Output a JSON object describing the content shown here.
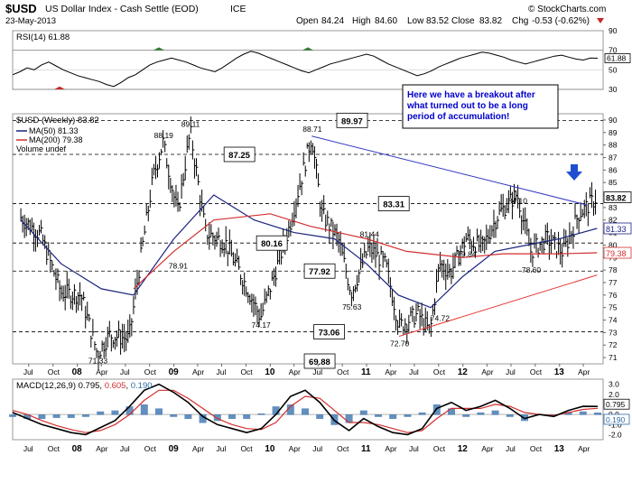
{
  "header": {
    "symbol": "$USD",
    "description": "US Dollar Index - Cash Settle (EOD)",
    "exchange": "ICE",
    "date": "23-May-2013",
    "open_label": "Open",
    "open": "84.24",
    "high_label": "High",
    "high": "84.60",
    "low_label": "Low",
    "low": "83.52",
    "close_label": "Close",
    "close": "83.82",
    "chg_label": "Chg",
    "chg": "-0.53 (-0.62%)",
    "watermark": "© StockCharts.com"
  },
  "colors": {
    "price": "#000000",
    "ma50": "#1a237e",
    "ma200": "#d32f2f",
    "trendline_blue": "#3636c8",
    "trendline_red": "#e53935",
    "histogram": "#2e6aa8",
    "arrow": "#1f4fd1",
    "callout_text": "#0000cc",
    "rsi_fill": "#c62828",
    "rsi_overbought_fill": "#2e7d32"
  },
  "chart_data": [
    {
      "type": "line",
      "panel": "RSI",
      "label": "RSI(14)",
      "value": "61.88",
      "ylim": [
        30,
        90
      ],
      "ticks": [
        "90",
        "70",
        "50",
        "30"
      ],
      "reference_lines": [
        70,
        30
      ],
      "series": [
        {
          "values": [
            45,
            48,
            52,
            50,
            55,
            58,
            54,
            50,
            47,
            44,
            42,
            40,
            38,
            35,
            33,
            37,
            42,
            45,
            50,
            55,
            58,
            60,
            62,
            60,
            58,
            55,
            52,
            50,
            48,
            52,
            57,
            62,
            66,
            69,
            67,
            64,
            61,
            58,
            55,
            52,
            49,
            47,
            50,
            53,
            56,
            58,
            60,
            62,
            64,
            66,
            64,
            60,
            56,
            53,
            50,
            47,
            44,
            46,
            49,
            53,
            56,
            59,
            62,
            64,
            66,
            68,
            67,
            65,
            63,
            60,
            58,
            56,
            58,
            60,
            62,
            64,
            65,
            63,
            61,
            60,
            62,
            61.88
          ]
        }
      ]
    },
    {
      "type": "ohlc",
      "panel": "Price",
      "label": "$USD (Weekly)",
      "value": "83.82",
      "ylim": [
        70.5,
        90.5
      ],
      "y_ticks": [
        71,
        72,
        73,
        74,
        75,
        76,
        77,
        78,
        79,
        80,
        81,
        82,
        83,
        84,
        85,
        86,
        87,
        88,
        89,
        90
      ],
      "x_ticks": [
        "Jul",
        "Oct",
        "08",
        "Apr",
        "Jul",
        "Oct",
        "09",
        "Apr",
        "Jul",
        "Oct",
        "10",
        "Apr",
        "Jul",
        "Oct",
        "11",
        "Apr",
        "Jul",
        "Oct",
        "12",
        "Apr",
        "Jul",
        "Oct",
        "13",
        "Apr"
      ],
      "x_range": [
        "2007-05-01",
        "2013-06-15"
      ],
      "series": [
        {
          "name": "$USD (Weekly) 83.82",
          "dates": [
            "2007-06-01",
            "2007-08-15",
            "2007-11-01",
            "2008-01-15",
            "2008-03-17",
            "2008-05-01",
            "2008-07-15",
            "2008-09-01",
            "2008-10-15",
            "2008-11-21",
            "2009-01-15",
            "2009-03-04",
            "2009-05-01",
            "2009-07-15",
            "2009-09-15",
            "2009-11-25",
            "2010-01-15",
            "2010-03-15",
            "2010-06-07",
            "2010-07-15",
            "2010-09-15",
            "2010-11-04",
            "2011-01-10",
            "2011-03-15",
            "2011-05-04",
            "2011-07-15",
            "2011-08-29",
            "2011-10-04",
            "2011-11-15",
            "2012-01-13",
            "2012-03-15",
            "2012-05-15",
            "2012-07-24",
            "2012-09-14",
            "2012-11-15",
            "2013-01-15",
            "2013-03-15",
            "2013-05-23"
          ],
          "close": [
            82.2,
            80.8,
            76.2,
            76.0,
            71.3,
            72.8,
            72.5,
            79.5,
            85.5,
            88.2,
            82.5,
            89.1,
            81.0,
            80.2,
            77.5,
            74.2,
            77.5,
            81.5,
            88.7,
            82.5,
            80.5,
            76.2,
            79.8,
            78.4,
            73.5,
            74.5,
            73.0,
            78.5,
            77.8,
            80.5,
            79.8,
            82.5,
            84.1,
            79.5,
            80.5,
            79.4,
            82.5,
            83.8
          ]
        },
        {
          "name": "MA(50) 81.33",
          "dates": [
            "2007-06-01",
            "2007-11-01",
            "2008-04-01",
            "2008-08-01",
            "2009-01-01",
            "2009-06-01",
            "2009-11-01",
            "2010-04-01",
            "2010-09-01",
            "2011-01-01",
            "2011-05-01",
            "2011-09-01",
            "2012-01-01",
            "2012-05-01",
            "2012-09-01",
            "2013-01-01",
            "2013-05-23"
          ],
          "values": [
            82.0,
            78.5,
            76.5,
            76.0,
            80.5,
            84.0,
            82.0,
            81.0,
            80.5,
            78.5,
            76.0,
            75.0,
            77.5,
            79.5,
            80.0,
            80.5,
            81.33
          ]
        },
        {
          "name": "MA(200) 79.38",
          "dates": [
            "2008-08-01",
            "2009-01-01",
            "2009-06-01",
            "2010-01-01",
            "2010-06-01",
            "2011-01-01",
            "2011-06-01",
            "2012-01-01",
            "2012-06-01",
            "2013-01-01",
            "2013-05-23"
          ],
          "values": [
            76.5,
            79.5,
            82.0,
            82.5,
            81.5,
            80.5,
            79.5,
            79.0,
            79.3,
            79.3,
            79.38
          ]
        },
        {
          "name": "Volume undef",
          "values": []
        }
      ],
      "annotations": [
        {
          "text": "88.19",
          "date": "2008-11-21",
          "value": 88.19
        },
        {
          "text": "89.11",
          "date": "2009-03-04",
          "value": 89.11
        },
        {
          "text": "78.91",
          "date": "2009-01-15",
          "value": 78.91
        },
        {
          "text": "71.33",
          "date": "2008-03-17",
          "value": 71.33
        },
        {
          "text": "74.17",
          "date": "2009-11-25",
          "value": 74.17
        },
        {
          "text": "88.71",
          "date": "2010-06-07",
          "value": 88.71
        },
        {
          "text": "81.44",
          "date": "2011-01-10",
          "value": 81.44
        },
        {
          "text": "75.63",
          "date": "2010-11-04",
          "value": 75.63
        },
        {
          "text": "72.70",
          "date": "2011-05-04",
          "value": 72.7
        },
        {
          "text": "74.72",
          "date": "2011-10-04",
          "value": 74.72
        },
        {
          "text": "79.84",
          "date": "2012-01-13",
          "value": 79.84
        },
        {
          "text": "84.10",
          "date": "2012-07-24",
          "value": 84.1
        },
        {
          "text": "78.60",
          "date": "2012-09-14",
          "value": 78.6
        }
      ],
      "boxed_levels": [
        {
          "text": "89.97",
          "value": 89.97,
          "date": "2010-09-10"
        },
        {
          "text": "87.25",
          "value": 87.25,
          "date": "2009-07-10"
        },
        {
          "text": "83.31",
          "value": 83.31,
          "date": "2011-02-15"
        },
        {
          "text": "80.16",
          "value": 80.16,
          "date": "2009-11-10"
        },
        {
          "text": "77.92",
          "value": 77.92,
          "date": "2010-05-10"
        },
        {
          "text": "73.06",
          "value": 73.06,
          "date": "2010-06-15"
        },
        {
          "text": "69.88",
          "value": 69.88,
          "date": "2010-05-10"
        }
      ],
      "dashed_levels": [
        89.97,
        87.25,
        83.31,
        80.16,
        77.92,
        73.06,
        69.88
      ],
      "trendlines": [
        {
          "color": "blue",
          "from_date": "2010-06-07",
          "from_value": 88.71,
          "to_date": "2013-04-15",
          "to_value": 83.2
        },
        {
          "color": "red",
          "from_date": "2011-05-04",
          "from_value": 72.7,
          "to_date": "2013-05-23",
          "to_value": 77.6
        }
      ],
      "last_value_labels": [
        "83.82",
        "81.33",
        "79.38"
      ],
      "callout": "Here we have a breakout after what turned out to be a long period of accumulation!"
    },
    {
      "type": "line",
      "panel": "MACD",
      "label": "MACD(12,26,9)",
      "values": {
        "macd": "0.795",
        "signal": "0.605",
        "histogram": "0.190"
      },
      "ylim": [
        -2.5,
        3.5
      ],
      "ticks": [
        "3.0",
        "2.0",
        "1.0",
        "0.0",
        "-1.0",
        "-2.0"
      ],
      "x_ticks": [
        "Jul",
        "Oct",
        "08",
        "Apr",
        "Jul",
        "Oct",
        "09",
        "Apr",
        "Jul",
        "Oct",
        "10",
        "Apr",
        "Jul",
        "Oct",
        "11",
        "Apr",
        "Jul",
        "Oct",
        "12",
        "Apr",
        "Jul",
        "Oct",
        "13",
        "Apr"
      ],
      "series": [
        {
          "name": "MACD",
          "values": [
            0.2,
            -0.4,
            -1.0,
            -1.4,
            -1.8,
            -2.0,
            -1.3,
            -0.6,
            0.8,
            2.4,
            3.0,
            2.2,
            1.2,
            -0.2,
            -1.0,
            -1.4,
            -1.8,
            -1.4,
            0.0,
            1.8,
            2.4,
            1.2,
            -0.6,
            -1.6,
            -0.4,
            -1.2,
            -1.8,
            -2.0,
            -1.4,
            0.6,
            1.2,
            0.4,
            0.8,
            1.4,
            0.6,
            -0.4,
            0.0,
            -0.2,
            0.4,
            0.8,
            0.795
          ]
        },
        {
          "name": "Signal",
          "values": [
            0.4,
            0.0,
            -0.6,
            -1.1,
            -1.5,
            -1.8,
            -1.6,
            -1.0,
            0.0,
            1.4,
            2.4,
            2.4,
            1.6,
            0.6,
            -0.4,
            -1.0,
            -1.4,
            -1.5,
            -0.8,
            0.8,
            1.8,
            1.6,
            0.4,
            -0.8,
            -0.8,
            -1.0,
            -1.4,
            -1.8,
            -1.6,
            -0.4,
            0.6,
            0.6,
            0.6,
            1.0,
            0.8,
            0.2,
            0.0,
            -0.1,
            0.2,
            0.5,
            0.605
          ]
        },
        {
          "name": "Histogram",
          "values": [
            -0.2,
            -0.4,
            -0.4,
            -0.3,
            -0.3,
            -0.2,
            0.3,
            0.4,
            0.8,
            1.0,
            0.6,
            -0.2,
            -0.4,
            -0.8,
            -0.6,
            -0.4,
            -0.4,
            0.1,
            0.8,
            1.0,
            0.6,
            -0.4,
            -1.0,
            -0.8,
            0.4,
            -0.2,
            -0.4,
            -0.2,
            0.2,
            1.0,
            0.6,
            -0.2,
            0.2,
            0.4,
            -0.2,
            -0.6,
            0.0,
            -0.1,
            0.2,
            0.3,
            0.19
          ]
        }
      ]
    }
  ]
}
